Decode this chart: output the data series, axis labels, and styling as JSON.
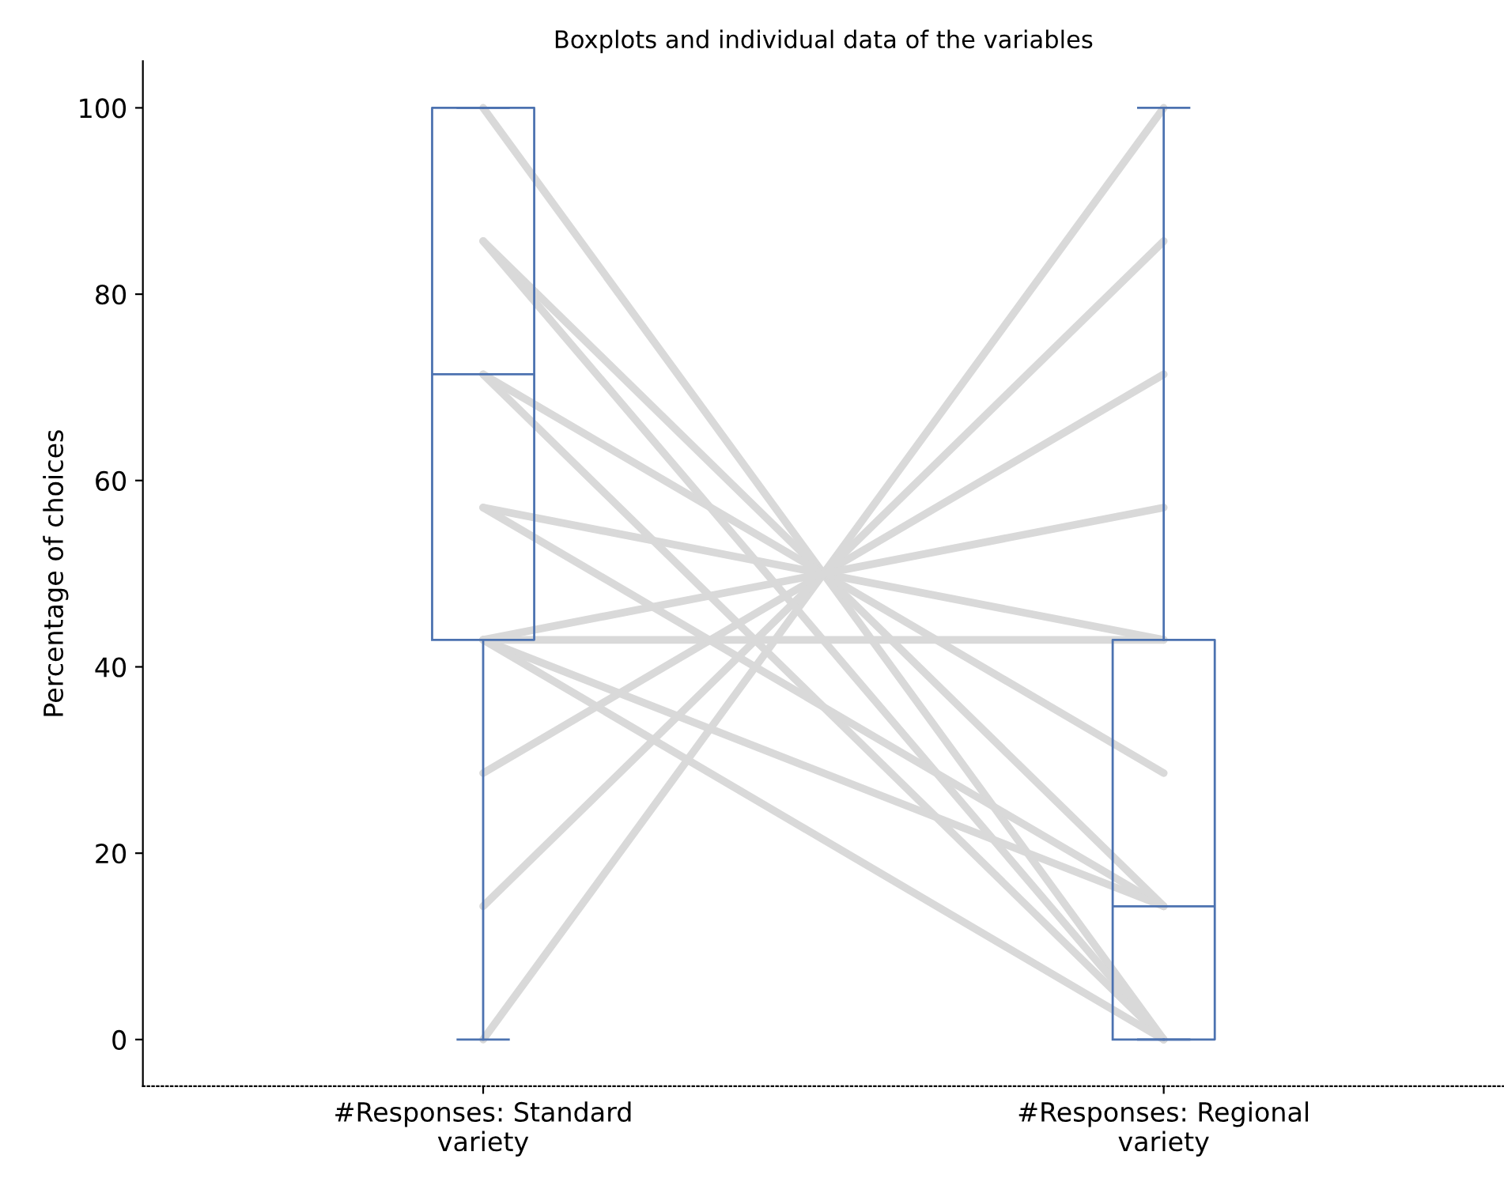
{
  "chart_data": {
    "type": "box",
    "title": "Boxplots and individual data of the variables",
    "ylabel": "Percentage of choices",
    "categories": [
      "#Responses: Standard\nvariety",
      "#Responses: Regional\nvariety"
    ],
    "color": "#4c72b0",
    "boxes": [
      {
        "low": 0,
        "q1": 42.9,
        "median": 71.4,
        "q3": 100,
        "high": 100
      },
      {
        "low": 0,
        "q1": 0,
        "median": 14.3,
        "q3": 42.9,
        "high": 100
      }
    ],
    "series": [
      {
        "type": "line",
        "color": "#d9d9d9",
        "values": [
          100,
          0
        ]
      },
      {
        "type": "line",
        "color": "#d9d9d9",
        "values": [
          85.7,
          14.3
        ]
      },
      {
        "type": "line",
        "color": "#d9d9d9",
        "values": [
          71.4,
          28.6
        ]
      },
      {
        "type": "line",
        "color": "#d9d9d9",
        "values": [
          57.1,
          42.9
        ]
      },
      {
        "type": "line",
        "color": "#d9d9d9",
        "values": [
          0,
          100
        ]
      },
      {
        "type": "line",
        "color": "#d9d9d9",
        "values": [
          28.6,
          71.4
        ]
      },
      {
        "type": "line",
        "color": "#d9d9d9",
        "values": [
          14.3,
          85.7
        ]
      },
      {
        "type": "line",
        "color": "#d9d9d9",
        "values": [
          42.9,
          57.1
        ]
      },
      {
        "type": "line",
        "color": "#d9d9d9",
        "values": [
          42.9,
          42.9
        ]
      },
      {
        "type": "line",
        "color": "#d9d9d9",
        "values": [
          85.7,
          0
        ]
      },
      {
        "type": "line",
        "color": "#d9d9d9",
        "values": [
          71.4,
          0
        ]
      },
      {
        "type": "line",
        "color": "#d9d9d9",
        "values": [
          57.1,
          14.3
        ]
      },
      {
        "type": "line",
        "color": "#d9d9d9",
        "values": [
          42.9,
          14.3
        ]
      },
      {
        "type": "line",
        "color": "#d9d9d9",
        "values": [
          42.9,
          0
        ]
      }
    ],
    "ylim": [
      -5,
      105
    ],
    "yticks": [
      0,
      20,
      40,
      60,
      80,
      100
    ],
    "grid": false,
    "legend": false
  }
}
